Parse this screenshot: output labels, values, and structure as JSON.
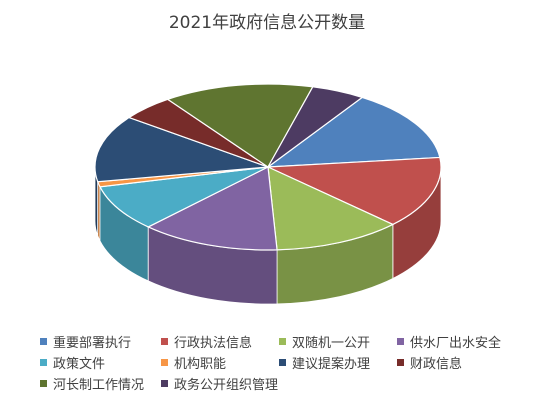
{
  "chart_data": {
    "type": "pie",
    "subtype": "3d-pie",
    "title": "2021年政府信息公开数量",
    "legend_position": "bottom",
    "categories": [
      "重要部署执行",
      "行政执法信息",
      "双随机一公开",
      "供水厂出水安全",
      "政策文件",
      "机构职能",
      "建议提案办理",
      "财政信息",
      "河长制工作情况",
      "政务公开组织管理"
    ],
    "values": [
      14,
      14,
      12,
      13,
      9,
      1,
      13,
      5,
      14,
      5
    ],
    "colors": [
      "#4f81bd",
      "#c0504d",
      "#9bbb59",
      "#8064a2",
      "#4bacc6",
      "#f79646",
      "#2c4d75",
      "#772c2a",
      "#5f7530",
      "#4d3b62"
    ]
  }
}
